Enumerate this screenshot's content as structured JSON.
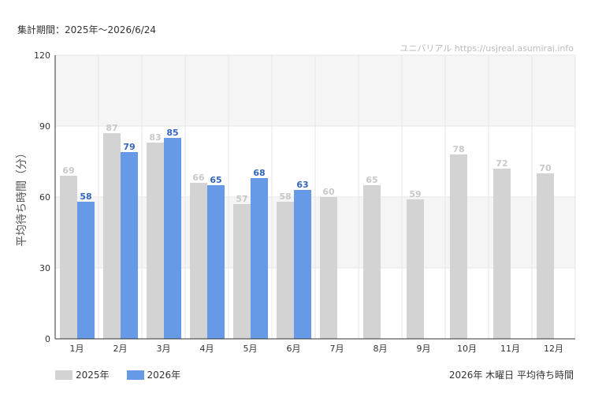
{
  "header": {
    "period": "集計期間：2025年～2026/6/24",
    "watermark": "ユニバリアル https://usjreal.asumirai.info"
  },
  "caption": "2026年 木曜日 平均待ち時間",
  "colors": {
    "series_2025": "#d3d3d3",
    "series_2026": "#6699e6",
    "label_2025": "#c8c8c8",
    "label_2026": "#3366bb",
    "band": "#f5f5f5",
    "grid": "#e6e6e6"
  },
  "chart_data": {
    "type": "bar",
    "ylabel": "平均待ち時間（分）",
    "ylim": [
      0,
      120
    ],
    "yticks": [
      0,
      30,
      60,
      90,
      120
    ],
    "grid": true,
    "legend_position": "bottom-left",
    "categories": [
      "1月",
      "2月",
      "3月",
      "4月",
      "5月",
      "6月",
      "7月",
      "8月",
      "9月",
      "10月",
      "11月",
      "12月"
    ],
    "series": [
      {
        "name": "2025年",
        "values": [
          69,
          87,
          83,
          66,
          57,
          58,
          60,
          65,
          59,
          78,
          72,
          70
        ]
      },
      {
        "name": "2026年",
        "values": [
          58,
          79,
          85,
          65,
          68,
          63,
          null,
          null,
          null,
          null,
          null,
          null
        ]
      }
    ]
  }
}
